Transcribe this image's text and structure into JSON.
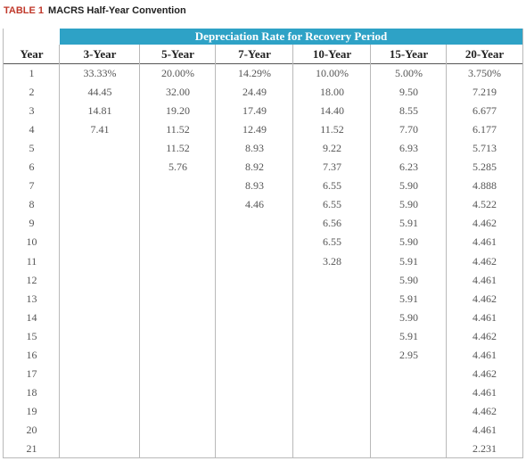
{
  "caption": {
    "label": "TABLE 1",
    "title": "MACRS Half-Year Convention"
  },
  "banner": "Depreciation Rate for Recovery Period",
  "columns": [
    "Year",
    "3-Year",
    "5-Year",
    "7-Year",
    "10-Year",
    "15-Year",
    "20-Year"
  ],
  "rows": [
    [
      "1",
      "33.33%",
      "20.00%",
      "14.29%",
      "10.00%",
      "5.00%",
      "3.750%"
    ],
    [
      "2",
      "44.45",
      "32.00",
      "24.49",
      "18.00",
      "9.50",
      "7.219"
    ],
    [
      "3",
      "14.81",
      "19.20",
      "17.49",
      "14.40",
      "8.55",
      "6.677"
    ],
    [
      "4",
      "7.41",
      "11.52",
      "12.49",
      "11.52",
      "7.70",
      "6.177"
    ],
    [
      "5",
      "",
      "11.52",
      "8.93",
      "9.22",
      "6.93",
      "5.713"
    ],
    [
      "6",
      "",
      "5.76",
      "8.92",
      "7.37",
      "6.23",
      "5.285"
    ],
    [
      "7",
      "",
      "",
      "8.93",
      "6.55",
      "5.90",
      "4.888"
    ],
    [
      "8",
      "",
      "",
      "4.46",
      "6.55",
      "5.90",
      "4.522"
    ],
    [
      "9",
      "",
      "",
      "",
      "6.56",
      "5.91",
      "4.462"
    ],
    [
      "10",
      "",
      "",
      "",
      "6.55",
      "5.90",
      "4.461"
    ],
    [
      "11",
      "",
      "",
      "",
      "3.28",
      "5.91",
      "4.462"
    ],
    [
      "12",
      "",
      "",
      "",
      "",
      "5.90",
      "4.461"
    ],
    [
      "13",
      "",
      "",
      "",
      "",
      "5.91",
      "4.462"
    ],
    [
      "14",
      "",
      "",
      "",
      "",
      "5.90",
      "4.461"
    ],
    [
      "15",
      "",
      "",
      "",
      "",
      "5.91",
      "4.462"
    ],
    [
      "16",
      "",
      "",
      "",
      "",
      "2.95",
      "4.461"
    ],
    [
      "17",
      "",
      "",
      "",
      "",
      "",
      "4.462"
    ],
    [
      "18",
      "",
      "",
      "",
      "",
      "",
      "4.461"
    ],
    [
      "19",
      "",
      "",
      "",
      "",
      "",
      "4.462"
    ],
    [
      "20",
      "",
      "",
      "",
      "",
      "",
      "4.461"
    ],
    [
      "21",
      "",
      "",
      "",
      "",
      "",
      "2.231"
    ]
  ],
  "colors": {
    "banner": "#2ea2c6",
    "caption_label": "#c0392b"
  }
}
